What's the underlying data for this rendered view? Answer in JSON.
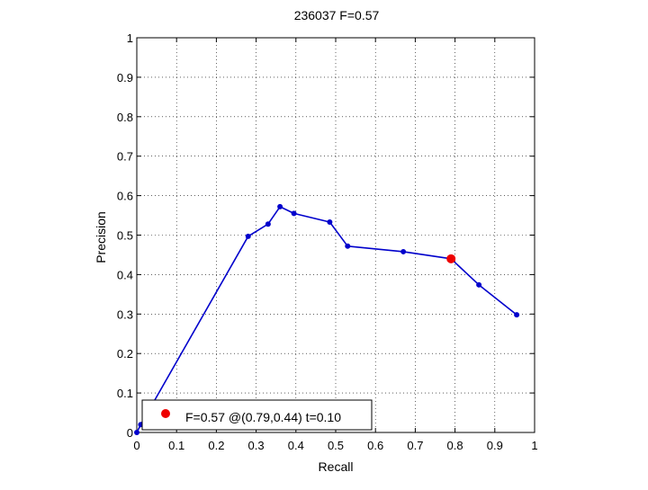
{
  "chart_data": {
    "type": "line",
    "title": "236037 F=0.57",
    "xlabel": "Recall",
    "ylabel": "Precision",
    "xlim": [
      0,
      1
    ],
    "ylim": [
      0,
      1
    ],
    "grid": true,
    "x_ticks": [
      0,
      0.1,
      0.2,
      0.3,
      0.4,
      0.5,
      0.6,
      0.7,
      0.8,
      0.9,
      1
    ],
    "y_ticks": [
      0,
      0.1,
      0.2,
      0.3,
      0.4,
      0.5,
      0.6,
      0.7,
      0.8,
      0.9,
      1
    ],
    "x_tick_labels": [
      "0",
      "0.1",
      "0.2",
      "0.3",
      "0.4",
      "0.5",
      "0.6",
      "0.7",
      "0.8",
      "0.9",
      "1"
    ],
    "y_tick_labels": [
      "0",
      "0.1",
      "0.2",
      "0.3",
      "0.4",
      "0.5",
      "0.6",
      "0.7",
      "0.8",
      "0.9",
      "1"
    ],
    "series": [
      {
        "color": "#0000cc",
        "x": [
          0.0,
          0.01,
          0.28,
          0.33,
          0.36,
          0.395,
          0.485,
          0.53,
          0.67,
          0.79,
          0.86,
          0.955
        ],
        "y": [
          0.0,
          0.02,
          0.497,
          0.528,
          0.572,
          0.555,
          0.533,
          0.472,
          0.458,
          0.44,
          0.374,
          0.298
        ]
      }
    ],
    "highlight_point": {
      "x": 0.79,
      "y": 0.44,
      "color": "#ee0000"
    },
    "legend": {
      "placement": "bottom-left",
      "text": "F=0.57 @(0.79,0.44) t=0.10"
    }
  }
}
